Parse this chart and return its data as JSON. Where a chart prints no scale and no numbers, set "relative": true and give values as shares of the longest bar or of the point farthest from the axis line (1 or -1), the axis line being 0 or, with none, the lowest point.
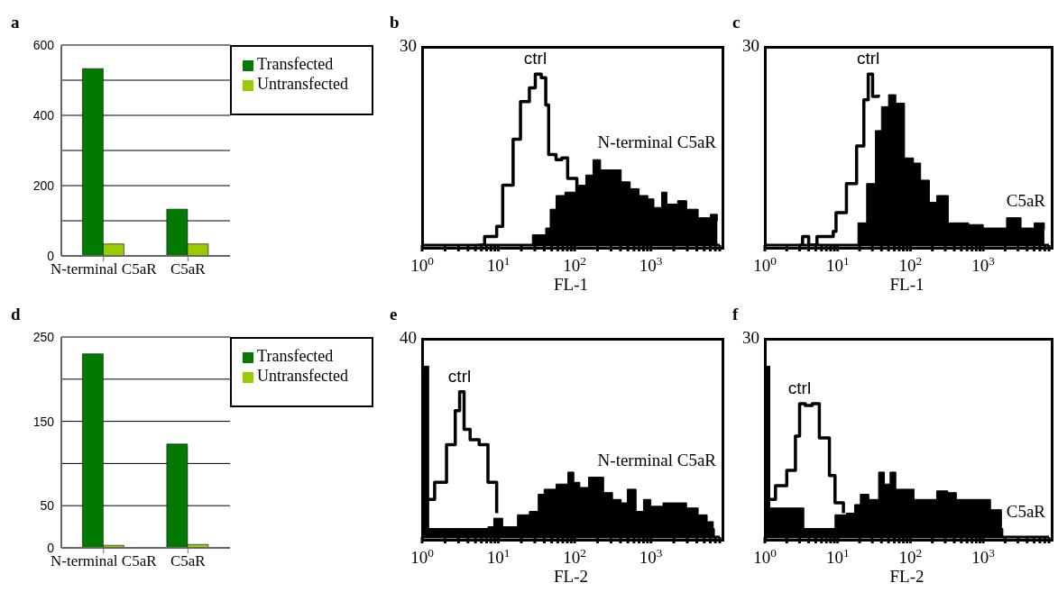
{
  "chart_data": [
    {
      "type": "bar",
      "title": "a",
      "categories": [
        "N-terminal C5aR",
        "C5aR"
      ],
      "series": [
        {
          "name": "Transfected",
          "color": "#007a00",
          "values": [
            533,
            133
          ]
        },
        {
          "name": "Untransfected",
          "color": "#99cc00",
          "values": [
            34,
            34
          ]
        }
      ],
      "ylim": [
        0,
        600
      ],
      "yticks": [
        0,
        {
          "value": 100,
          "label": null
        },
        200,
        {
          "value": 300,
          "label": null
        },
        400,
        {
          "value": 500,
          "label": null
        },
        600
      ],
      "grid": "y",
      "legend": "top right"
    },
    {
      "type": "area",
      "title": "b",
      "xlabel": "FL-1",
      "log": "x",
      "relative": true,
      "xlim": [
        1,
        8000
      ],
      "xticks": [
        {
          "value": 1,
          "label": "10$^{0}$"
        },
        {
          "value": 2,
          "label": null
        },
        {
          "value": 3,
          "label": null
        },
        {
          "value": 4,
          "label": null
        },
        {
          "value": 5,
          "label": null
        },
        {
          "value": 6,
          "label": null
        },
        {
          "value": 7,
          "label": null
        },
        {
          "value": 8,
          "label": null
        },
        {
          "value": 9,
          "label": null
        },
        {
          "value": 10,
          "label": "10$^{1}$"
        },
        {
          "value": 20,
          "label": null
        },
        {
          "value": 30,
          "label": null
        },
        {
          "value": 40,
          "label": null
        },
        {
          "value": 50,
          "label": null
        },
        {
          "value": 60,
          "label": null
        },
        {
          "value": 70,
          "label": null
        },
        {
          "value": 80,
          "label": null
        },
        {
          "value": 90,
          "label": null
        },
        {
          "value": 100,
          "label": "10$^{2}$"
        },
        {
          "value": 200,
          "label": null
        },
        {
          "value": 300,
          "label": null
        },
        {
          "value": 400,
          "label": null
        },
        {
          "value": 500,
          "label": null
        },
        {
          "value": 600,
          "label": null
        },
        {
          "value": 700,
          "label": null
        },
        {
          "value": 800,
          "label": null
        },
        {
          "value": 900,
          "label": null
        },
        {
          "value": 1000,
          "label": "10$^{3}$"
        },
        {
          "value": 2000,
          "label": null
        },
        {
          "value": 3000,
          "label": null
        },
        {
          "value": 4000,
          "label": null
        },
        {
          "value": 5000,
          "label": null
        },
        {
          "value": 6000,
          "label": null
        },
        {
          "value": 7000,
          "label": null
        },
        {
          "value": 8000,
          "label": null
        }
      ],
      "series": [
        {
          "type": "area",
          "name": "N-terminal C5aR",
          "color": "#000000",
          "x": [
            25.5,
            27.9,
            41.7,
            47.8,
            57,
            74.6,
            107,
            140,
            174,
            219,
            340,
            408,
            536,
            700,
            913,
            1096,
            1380,
            1622,
            2240,
            2950,
            4170,
            6030,
            7430
          ],
          "values": [
            0,
            0.06,
            0.1,
            0.21,
            0.29,
            0.31,
            0.35,
            0.41,
            0.5,
            0.44,
            0.44,
            0.37,
            0.33,
            0.29,
            0.27,
            0.22,
            0.31,
            0.24,
            0.26,
            0.21,
            0.16,
            0.18,
            0.14
          ]
        },
        {
          "type": "step",
          "name": "ctrl",
          "color": "#000000",
          "x": [
            5.6,
            6.6,
            9.5,
            11.4,
            15.6,
            19.5,
            25.5,
            30.5,
            36.5,
            41.8,
            45.6,
            57,
            68,
            81,
            107
          ],
          "values": [
            0,
            0.05,
            0.11,
            0.35,
            0.62,
            0.84,
            0.92,
            1,
            0.98,
            0.82,
            0.53,
            0.5,
            0.51,
            0.39,
            0.31
          ]
        }
      ],
      "annotations": [
        "30"
      ]
    },
    {
      "type": "area",
      "title": "c",
      "xlabel": "FL-1",
      "log": "x",
      "relative": true,
      "xlim": [
        1,
        8000
      ],
      "xticks": [
        {
          "value": 1,
          "label": "10$^{0}$"
        },
        {
          "value": 2,
          "label": null
        },
        {
          "value": 3,
          "label": null
        },
        {
          "value": 4,
          "label": null
        },
        {
          "value": 5,
          "label": null
        },
        {
          "value": 6,
          "label": null
        },
        {
          "value": 7,
          "label": null
        },
        {
          "value": 8,
          "label": null
        },
        {
          "value": 9,
          "label": null
        },
        {
          "value": 10,
          "label": "10$^{1}$"
        },
        {
          "value": 20,
          "label": null
        },
        {
          "value": 30,
          "label": null
        },
        {
          "value": 40,
          "label": null
        },
        {
          "value": 50,
          "label": null
        },
        {
          "value": 60,
          "label": null
        },
        {
          "value": 70,
          "label": null
        },
        {
          "value": 80,
          "label": null
        },
        {
          "value": 90,
          "label": null
        },
        {
          "value": 100,
          "label": "10$^{2}$"
        },
        {
          "value": 200,
          "label": null
        },
        {
          "value": 300,
          "label": null
        },
        {
          "value": 400,
          "label": null
        },
        {
          "value": 500,
          "label": null
        },
        {
          "value": 600,
          "label": null
        },
        {
          "value": 700,
          "label": null
        },
        {
          "value": 800,
          "label": null
        },
        {
          "value": 900,
          "label": null
        },
        {
          "value": 1000,
          "label": "10$^{3}$"
        },
        {
          "value": 2000,
          "label": null
        },
        {
          "value": 3000,
          "label": null
        },
        {
          "value": 4000,
          "label": null
        },
        {
          "value": 5000,
          "label": null
        },
        {
          "value": 6000,
          "label": null
        },
        {
          "value": 7000,
          "label": null
        },
        {
          "value": 8000,
          "label": null
        }
      ],
      "series": [
        {
          "type": "area",
          "name": "C5aR",
          "color": "#000000",
          "x": [
            13.2,
            19,
            25,
            33,
            40,
            50,
            63,
            83,
            110,
            138,
            182,
            229,
            331,
            631,
            1000,
            2090,
            3310,
            5010,
            6920
          ],
          "values": [
            0,
            0.13,
            0.36,
            0.67,
            0.81,
            0.88,
            0.83,
            0.51,
            0.48,
            0.38,
            0.25,
            0.29,
            0.13,
            0.12,
            0.1,
            0.16,
            0.1,
            0.13,
            0.09
          ]
        },
        {
          "type": "step",
          "name": "ctrl",
          "color": "#000000",
          "x": [
            3,
            3.3,
            4,
            5.2,
            8.7,
            9.5,
            13.2,
            18.2,
            22.9,
            26.3,
            30.2,
            36.3
          ],
          "values": [
            0,
            0.05,
            0,
            0.05,
            0.08,
            0.19,
            0.36,
            0.58,
            0.85,
            1,
            0.87,
            0.88
          ]
        }
      ],
      "annotations": [
        "30"
      ]
    },
    {
      "type": "bar",
      "title": "d",
      "categories": [
        "N-terminal C5aR",
        "C5aR"
      ],
      "series": [
        {
          "name": "Transfected",
          "color": "#007a00",
          "values": [
            230,
            123
          ]
        },
        {
          "name": "Untransfected",
          "color": "#99cc00",
          "values": [
            3,
            4
          ]
        }
      ],
      "ylim": [
        0,
        250
      ],
      "yticks": [
        0,
        50,
        {
          "value": 100,
          "label": null
        },
        150,
        {
          "value": 200,
          "label": null
        },
        250
      ],
      "grid": "y",
      "legend": "top right"
    },
    {
      "type": "area",
      "title": "e",
      "xlabel": "FL-2",
      "log": "x",
      "relative": true,
      "xlim": [
        1,
        8000
      ],
      "xticks": [
        {
          "value": 1,
          "label": "10$^{0}$"
        },
        {
          "value": 2,
          "label": null
        },
        {
          "value": 3,
          "label": null
        },
        {
          "value": 4,
          "label": null
        },
        {
          "value": 5,
          "label": null
        },
        {
          "value": 6,
          "label": null
        },
        {
          "value": 7,
          "label": null
        },
        {
          "value": 8,
          "label": null
        },
        {
          "value": 9,
          "label": null
        },
        {
          "value": 10,
          "label": "10$^{1}$"
        },
        {
          "value": 20,
          "label": null
        },
        {
          "value": 30,
          "label": null
        },
        {
          "value": 40,
          "label": null
        },
        {
          "value": 50,
          "label": null
        },
        {
          "value": 60,
          "label": null
        },
        {
          "value": 70,
          "label": null
        },
        {
          "value": 80,
          "label": null
        },
        {
          "value": 90,
          "label": null
        },
        {
          "value": 100,
          "label": "10$^{2}$"
        },
        {
          "value": 200,
          "label": null
        },
        {
          "value": 300,
          "label": null
        },
        {
          "value": 400,
          "label": null
        },
        {
          "value": 500,
          "label": null
        },
        {
          "value": 600,
          "label": null
        },
        {
          "value": 700,
          "label": null
        },
        {
          "value": 800,
          "label": null
        },
        {
          "value": 900,
          "label": null
        },
        {
          "value": 1000,
          "label": "10$^{3}$"
        },
        {
          "value": 2000,
          "label": null
        },
        {
          "value": 3000,
          "label": null
        },
        {
          "value": 4000,
          "label": null
        },
        {
          "value": 5000,
          "label": null
        },
        {
          "value": 6000,
          "label": null
        },
        {
          "value": 7000,
          "label": null
        },
        {
          "value": 8000,
          "label": null
        }
      ],
      "series": [
        {
          "type": "area",
          "name": "N-terminal C5aR",
          "color": "#000000",
          "x": [
            1.02,
            1.06,
            1.22,
            1.9,
            3.25,
            7.3,
            8.7,
            11.4,
            17.8,
            25.5,
            33.3,
            39.8,
            57,
            81.5,
            97.7,
            117,
            152,
            190,
            240,
            314,
            408,
            490,
            640,
            800,
            1000,
            1440,
            2040,
            2940,
            4170,
            5470,
            6580,
            6800
          ],
          "values": [
            0.98,
            1,
            0.05,
            0.05,
            0.05,
            0.06,
            0.11,
            0.06,
            0.13,
            0.15,
            0.25,
            0.28,
            0.31,
            0.38,
            0.32,
            0.29,
            0.35,
            0.35,
            0.26,
            0.22,
            0.2,
            0.28,
            0.15,
            0.22,
            0.18,
            0.2,
            0.2,
            0.17,
            0.13,
            0.09,
            0.05,
            0
          ]
        },
        {
          "type": "step",
          "name": "ctrl",
          "color": "#000000",
          "x": [
            1.11,
            1.46,
            2.09,
            2.72,
            3.1,
            3.55,
            4.26,
            5.6,
            7.3,
            9.5
          ],
          "values": [
            0.22,
            0.32,
            0.54,
            0.74,
            0.85,
            0.63,
            0.57,
            0.54,
            0.32,
            0.14
          ]
        }
      ],
      "annotations": [
        "40"
      ]
    },
    {
      "type": "area",
      "title": "f",
      "xlabel": "FL-2",
      "log": "x",
      "relative": true,
      "xlim": [
        1,
        8000
      ],
      "xticks": [
        {
          "value": 1,
          "label": "10$^{0}$"
        },
        {
          "value": 2,
          "label": null
        },
        {
          "value": 3,
          "label": null
        },
        {
          "value": 4,
          "label": null
        },
        {
          "value": 5,
          "label": null
        },
        {
          "value": 6,
          "label": null
        },
        {
          "value": 7,
          "label": null
        },
        {
          "value": 8,
          "label": null
        },
        {
          "value": 9,
          "label": null
        },
        {
          "value": 10,
          "label": "10$^{1}$"
        },
        {
          "value": 20,
          "label": null
        },
        {
          "value": 30,
          "label": null
        },
        {
          "value": 40,
          "label": null
        },
        {
          "value": 50,
          "label": null
        },
        {
          "value": 60,
          "label": null
        },
        {
          "value": 70,
          "label": null
        },
        {
          "value": 80,
          "label": null
        },
        {
          "value": 90,
          "label": null
        },
        {
          "value": 100,
          "label": "10$^{2}$"
        },
        {
          "value": 200,
          "label": null
        },
        {
          "value": 300,
          "label": null
        },
        {
          "value": 400,
          "label": null
        },
        {
          "value": 500,
          "label": null
        },
        {
          "value": 600,
          "label": null
        },
        {
          "value": 700,
          "label": null
        },
        {
          "value": 800,
          "label": null
        },
        {
          "value": 900,
          "label": null
        },
        {
          "value": 1000,
          "label": "10$^{3}$"
        },
        {
          "value": 2000,
          "label": null
        },
        {
          "value": 3000,
          "label": null
        },
        {
          "value": 4000,
          "label": null
        },
        {
          "value": 5000,
          "label": null
        },
        {
          "value": 6000,
          "label": null
        },
        {
          "value": 7000,
          "label": null
        },
        {
          "value": 8000,
          "label": null
        }
      ],
      "series": [
        {
          "type": "area",
          "name": "C5aR",
          "color": "#000000",
          "x": [
            1.03,
            1.07,
            1.17,
            3.43,
            6.4,
            9.2,
            13.1,
            17.1,
            20.5,
            26.8,
            36.5,
            43.9,
            52.5,
            63,
            93,
            112,
            159,
            229,
            326,
            427,
            615,
            955,
            1260,
            1780,
            1860
          ],
          "values": [
            0.99,
            1,
            0.17,
            0.05,
            0.05,
            0.13,
            0.14,
            0.19,
            0.25,
            0.22,
            0.38,
            0.31,
            0.38,
            0.28,
            0.28,
            0.22,
            0.22,
            0.27,
            0.26,
            0.22,
            0.22,
            0.22,
            0.16,
            0.05,
            0
          ]
        },
        {
          "type": "step",
          "name": "ctrl",
          "color": "#000000",
          "x": [
            1.12,
            1.4,
            2,
            2.63,
            3,
            3.59,
            4.47,
            5.6,
            7.7,
            9.2,
            12
          ],
          "values": [
            0.22,
            0.3,
            0.39,
            0.59,
            0.78,
            0.77,
            0.78,
            0.58,
            0.36,
            0.2,
            0.14
          ]
        }
      ],
      "annotations": [
        "30"
      ]
    }
  ]
}
